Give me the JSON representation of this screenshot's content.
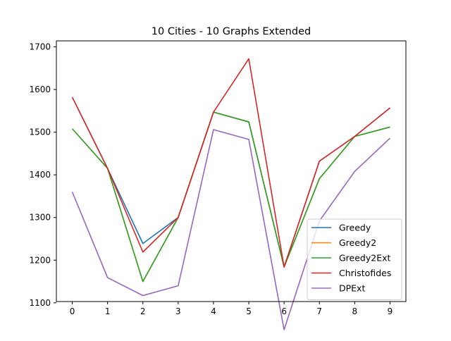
{
  "chart_data": {
    "type": "line",
    "title": "10 Cities - 10 Graphs Extended",
    "xlabel": "",
    "ylabel": "",
    "x": [
      0,
      1,
      2,
      3,
      4,
      5,
      6,
      7,
      8,
      9
    ],
    "xlim": [
      -0.45,
      9.45
    ],
    "ylim": [
      1103,
      1714
    ],
    "yticks": [
      1100,
      1200,
      1300,
      1400,
      1500,
      1600,
      1700
    ],
    "grid": false,
    "legend_position": "lower-right",
    "series": [
      {
        "name": "Greedy",
        "color": "#1f77b4",
        "values": [
          1582,
          1415,
          1239,
          1300,
          1547,
          1524,
          1184,
          1432,
          1490,
          1557
        ]
      },
      {
        "name": "Greedy2",
        "color": "#ff7f0e",
        "values": [
          1508,
          1415,
          1150,
          1300,
          1547,
          1524,
          1184,
          1391,
          1490,
          1512
        ]
      },
      {
        "name": "Greedy2Ext",
        "color": "#2ca02c",
        "values": [
          1508,
          1415,
          1150,
          1300,
          1547,
          1524,
          1184,
          1391,
          1490,
          1512
        ]
      },
      {
        "name": "Christofides",
        "color": "#d62728",
        "values": [
          1582,
          1415,
          1219,
          1300,
          1547,
          1672,
          1184,
          1432,
          1490,
          1557
        ]
      },
      {
        "name": "DPExt",
        "color": "#9467bd",
        "values": [
          1360,
          1159,
          1117,
          1140,
          1506,
          1483,
          1037,
          1292,
          1408,
          1486
        ]
      }
    ]
  }
}
